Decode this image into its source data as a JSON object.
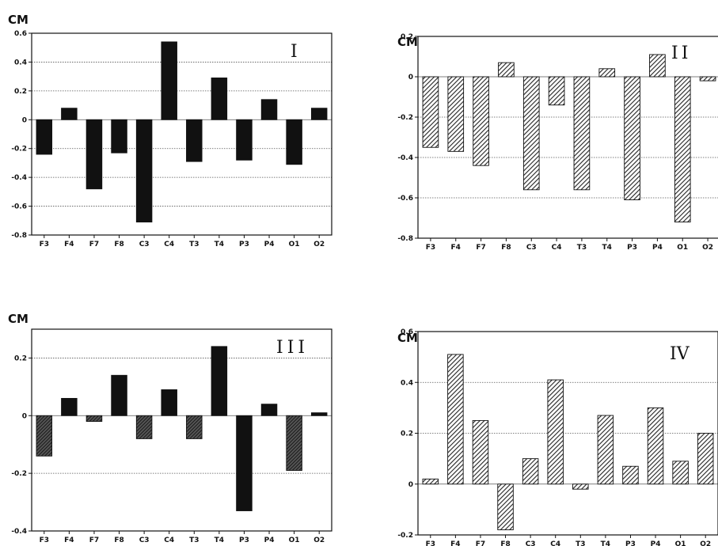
{
  "chart_data": [
    {
      "type": "bar",
      "title": "I",
      "ylabel": "CM",
      "ylim": [
        -0.8,
        0.6
      ],
      "yticks": [
        "0.6",
        "0.4",
        "0.2",
        "0",
        "-0.2",
        "-0.4",
        "-0.6",
        "-0.8"
      ],
      "categories": [
        "F3",
        "F4",
        "F7",
        "F8",
        "C3",
        "C4",
        "T3",
        "T4",
        "P3",
        "P4",
        "O1",
        "O2"
      ],
      "values": [
        -0.24,
        0.08,
        -0.48,
        -0.23,
        -0.71,
        0.54,
        -0.29,
        0.29,
        -0.28,
        0.14,
        -0.31,
        0.08
      ],
      "fill": "solid",
      "grid": true
    },
    {
      "type": "bar",
      "title": "II",
      "ylabel": "CM",
      "ylim": [
        -0.8,
        0.2
      ],
      "yticks": [
        "0.2",
        "0",
        "-0.2",
        "-0.4",
        "-0.6",
        "-0.8"
      ],
      "categories": [
        "F3",
        "F4",
        "F7",
        "F8",
        "C3",
        "C4",
        "T3",
        "T4",
        "P3",
        "P4",
        "O1",
        "O2"
      ],
      "values": [
        -0.35,
        -0.37,
        -0.44,
        0.07,
        -0.56,
        -0.14,
        -0.56,
        0.04,
        -0.61,
        0.11,
        -0.72,
        -0.02
      ],
      "fill": "hatched",
      "grid": true
    },
    {
      "type": "bar",
      "title": "III",
      "ylabel": "CM",
      "ylim": [
        -0.4,
        0.3
      ],
      "yticks": [
        "0.2",
        "0",
        "-0.2",
        "-0.4"
      ],
      "categories": [
        "F3",
        "F4",
        "F7",
        "F8",
        "C3",
        "C4",
        "T3",
        "T4",
        "P3",
        "P4",
        "O1",
        "O2"
      ],
      "values": [
        -0.14,
        0.06,
        -0.02,
        0.14,
        -0.08,
        0.09,
        -0.08,
        0.24,
        -0.33,
        0.04,
        -0.19,
        0.01
      ],
      "fill": "mixed",
      "grid": true
    },
    {
      "type": "bar",
      "title": "IV",
      "ylabel": "CM",
      "ylim": [
        -0.2,
        0.6
      ],
      "yticks": [
        "0.6",
        "0.4",
        "0.2",
        "0",
        "-0.2"
      ],
      "categories": [
        "F3",
        "F4",
        "F7",
        "F8",
        "C3",
        "C4",
        "T3",
        "T4",
        "P3",
        "P4",
        "O1",
        "O2"
      ],
      "values": [
        0.02,
        0.51,
        0.25,
        -0.18,
        0.1,
        0.41,
        -0.02,
        0.27,
        0.07,
        0.3,
        0.09,
        0.2
      ],
      "fill": "hatched",
      "grid": true
    }
  ]
}
